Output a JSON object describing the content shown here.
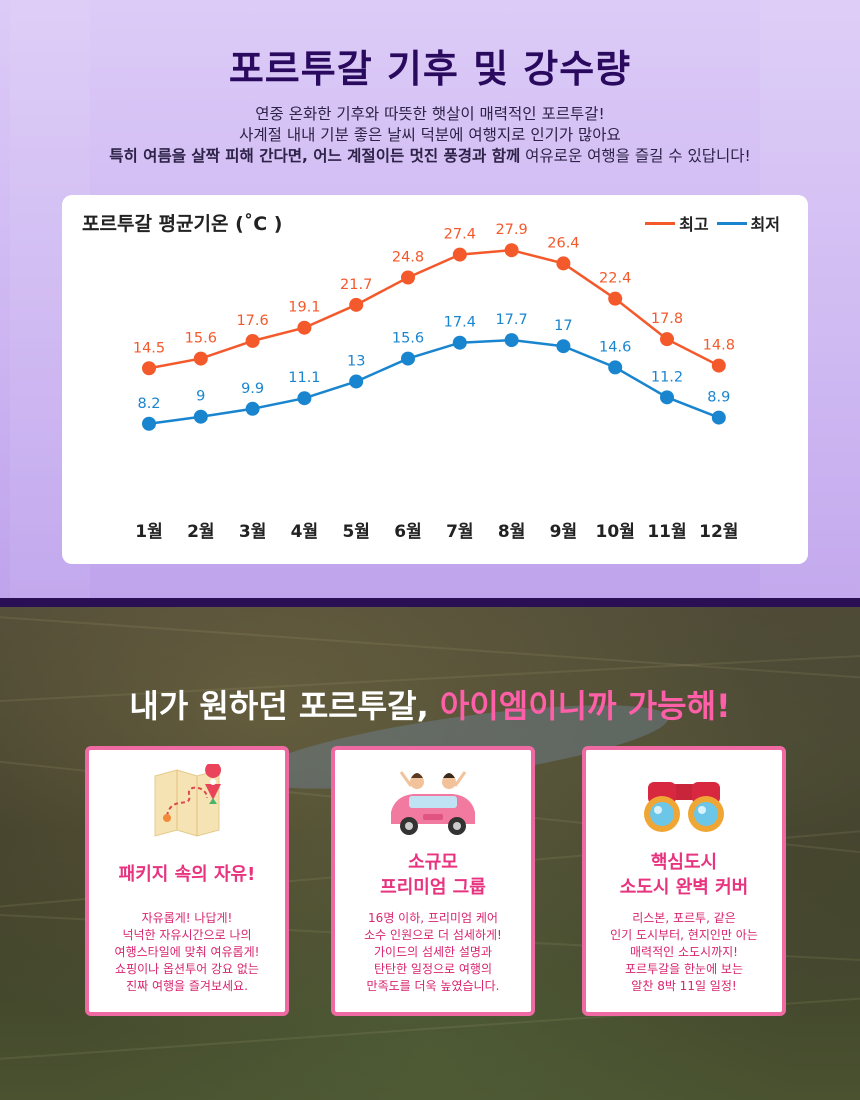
{
  "header": {
    "title": "포르투갈 기후 및 강수량",
    "line1": "연중 온화한 기후와 따뜻한 햇살이 매력적인 포르투갈!",
    "line2": "사계절 내내 기분 좋은 날씨 덕분에 여행지로 인기가 많아요",
    "line3_bold": "특히 여름을 살짝 피해 간다면, 어느 계절이든 멋진 풍경과 함께",
    "line3_rest": " 여유로운 여행을 즐길 수 있답니다!"
  },
  "chart_data": {
    "type": "line",
    "title": "포르투갈 평균기온 (˚C )",
    "categories": [
      "1월",
      "2월",
      "3월",
      "4월",
      "5월",
      "6월",
      "7월",
      "8월",
      "9월",
      "10월",
      "11월",
      "12월"
    ],
    "series": [
      {
        "name": "최고",
        "color": "#f4592c",
        "values": [
          14.5,
          15.6,
          17.6,
          19.1,
          21.7,
          24.8,
          27.4,
          27.9,
          26.4,
          22.4,
          17.8,
          14.8
        ]
      },
      {
        "name": "최저",
        "color": "#1a85cf",
        "values": [
          8.2,
          9,
          9.9,
          11.1,
          13,
          15.6,
          17.4,
          17.7,
          17,
          14.6,
          11.2,
          8.9
        ]
      }
    ],
    "legend": "top-right",
    "grid": false
  },
  "promo": {
    "headline_white": "내가 원하던 포르투갈,",
    "headline_pink": "아이엠이니까 가능해!",
    "features": [
      {
        "icon": "map-pin-icon",
        "title_lines": [
          "패키지 속의 자유!"
        ],
        "body_lines": [
          "자유롭게! 나답게!",
          "넉넉한 자유시간으로 나의",
          "여행스타일에 맞춰 여유롭게!",
          "쇼핑이나 옵션투어 강요 없는",
          "진짜 여행을 즐겨보세요."
        ]
      },
      {
        "icon": "car-travelers-icon",
        "title_lines": [
          "소규모",
          "프리미엄 그룹"
        ],
        "body_lines": [
          "16명 이하, 프리미엄 케어",
          "소수 인원으로 더 섬세하게!",
          "가이드의 섬세한 설명과",
          "탄탄한 일정으로 여행의",
          "만족도를 더욱 높였습니다."
        ]
      },
      {
        "icon": "binoculars-icon",
        "title_lines": [
          "핵심도시",
          "소도시 완벽 커버"
        ],
        "body_lines": [
          "리스본, 포르투, 같은",
          "인기 도시부터, 현지인만 아는",
          "매력적인 소도시까지!",
          "포르투갈을 한눈에 보는",
          "알찬 8박 11일 일정!"
        ]
      }
    ]
  }
}
